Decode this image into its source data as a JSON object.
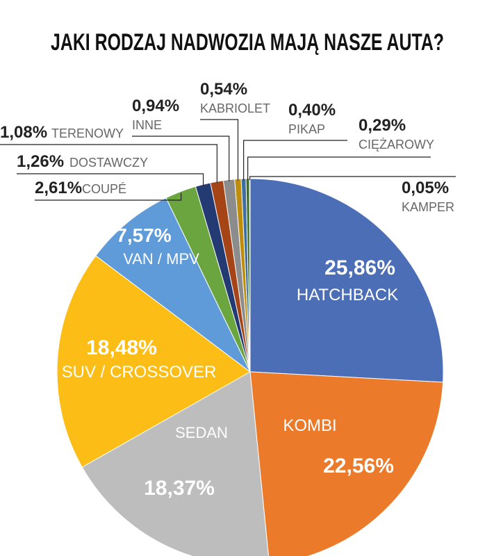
{
  "chart_data": {
    "type": "pie",
    "title": "JAKI RODZAJ NADWOZIA MAJĄ NASZE AUTA?",
    "slices": [
      {
        "label": "HATCHBACK",
        "value": 25.86,
        "value_text": "25,86%",
        "color": "#4b6eb6"
      },
      {
        "label": "KOMBI",
        "value": 22.56,
        "value_text": "22,56%",
        "color": "#eb7b2b"
      },
      {
        "label": "SEDAN",
        "value": 18.37,
        "value_text": "18,37%",
        "color": "#bdbdbd"
      },
      {
        "label": "SUV / CROSSOVER",
        "value": 18.48,
        "value_text": "18,48%",
        "color": "#fbbd16"
      },
      {
        "label": "VAN / MPV",
        "value": 7.57,
        "value_text": "7,57%",
        "color": "#5f9bd8"
      },
      {
        "label": "COUPÉ",
        "value": 2.61,
        "value_text": "2,61%",
        "color": "#6aa540"
      },
      {
        "label": "DOSTAWCZY",
        "value": 1.26,
        "value_text": "1,26%",
        "color": "#233a72"
      },
      {
        "label": "TERENOWY",
        "value": 1.08,
        "value_text": "1,08%",
        "color": "#a54416"
      },
      {
        "label": "INNE",
        "value": 0.94,
        "value_text": "0,94%",
        "color": "#8c8c8c"
      },
      {
        "label": "KABRIOLET",
        "value": 0.54,
        "value_text": "0,54%",
        "color": "#bf8d0d"
      },
      {
        "label": "PIKAP",
        "value": 0.4,
        "value_text": "0,40%",
        "color": "#3e6f9e"
      },
      {
        "label": "CIĘŻAROWY",
        "value": 0.29,
        "value_text": "0,29%",
        "color": "#40702a"
      },
      {
        "label": "KAMPER",
        "value": 0.05,
        "value_text": "0,05%",
        "color": "#2a3f7a"
      }
    ]
  }
}
